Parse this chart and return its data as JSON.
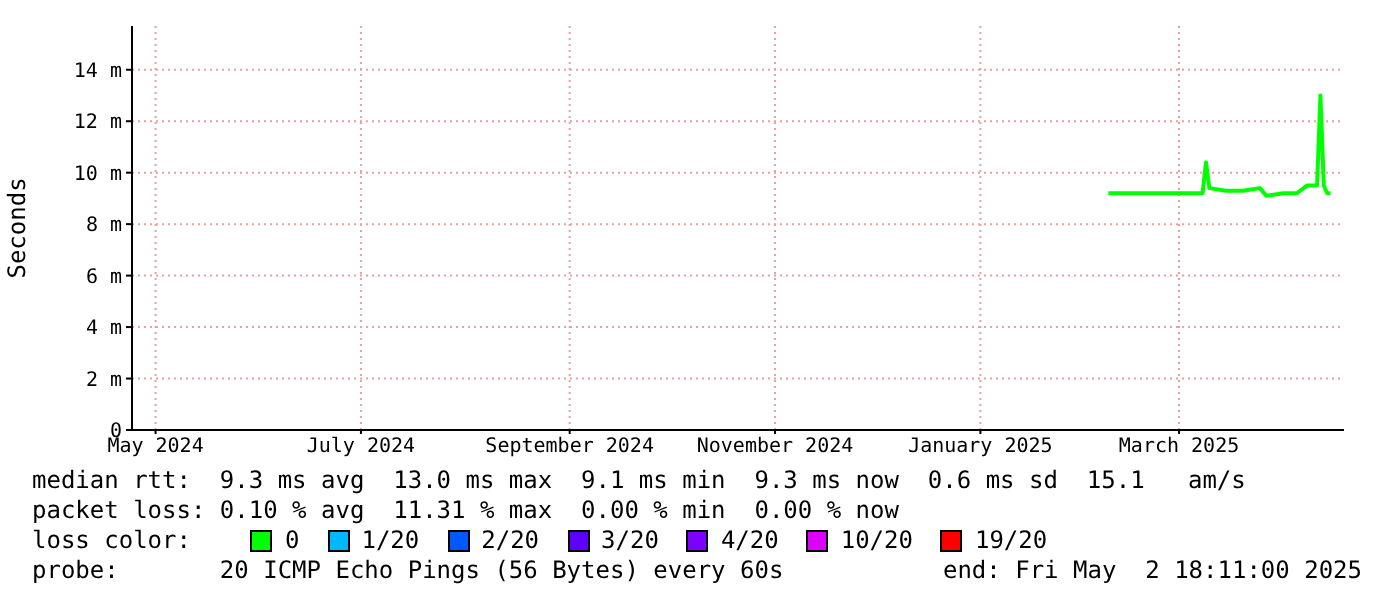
{
  "chart_data": {
    "type": "line",
    "ylabel": "Seconds",
    "legend_title": "loss color:",
    "legend": "bottom",
    "grid": true,
    "marker": "none",
    "line_style": "solid",
    "x": [
      "2025-02-08",
      "2025-02-15",
      "2025-02-22",
      "2025-03-01",
      "2025-03-08",
      "2025-03-09",
      "2025-03-10",
      "2025-03-15",
      "2025-03-20",
      "2025-03-25",
      "2025-03-27",
      "2025-04-01",
      "2025-04-05",
      "2025-04-08",
      "2025-04-11",
      "2025-04-12",
      "2025-04-13",
      "2025-04-14",
      "2025-04-15"
    ],
    "xlim": [
      "2024-04-24",
      "2025-04-19"
    ],
    "xticks": [
      {
        "value": "2024-05-01",
        "label": "May 2024"
      },
      {
        "value": "2024-07-01",
        "label": "July 2024"
      },
      {
        "value": "2024-09-01",
        "label": "September 2024"
      },
      {
        "value": "2024-11-01",
        "label": "November 2024"
      },
      {
        "value": "2025-01-01",
        "label": "January 2025"
      },
      {
        "value": "2025-03-01",
        "label": "March 2025"
      }
    ],
    "ylim": [
      0,
      15.7
    ],
    "yticks": [
      0,
      {
        "value": 2,
        "label": "2 m"
      },
      {
        "value": 4,
        "label": "4 m"
      },
      {
        "value": 6,
        "label": "6 m"
      },
      {
        "value": 8,
        "label": "8 m"
      },
      {
        "value": 10,
        "label": "10 m"
      },
      {
        "value": 12,
        "label": "12 m"
      },
      {
        "value": 14,
        "label": "14 m"
      }
    ],
    "series": [
      {
        "name": "0",
        "color": "#00ff00",
        "values": [
          9.2,
          9.2,
          9.2,
          9.2,
          9.2,
          10.4,
          9.4,
          9.3,
          9.3,
          9.4,
          9.1,
          9.2,
          9.2,
          9.5,
          9.5,
          13.0,
          9.5,
          9.2,
          9.2
        ]
      },
      {
        "name": "1/20",
        "color": "#00b8ff",
        "values": [
          null,
          null,
          null,
          null,
          null,
          null,
          null,
          null,
          null,
          null,
          null,
          null,
          null,
          null,
          null,
          null,
          null,
          null,
          null
        ]
      },
      {
        "name": "2/20",
        "color": "#0059ff",
        "values": [
          null,
          null,
          null,
          null,
          null,
          null,
          null,
          null,
          null,
          null,
          null,
          null,
          null,
          null,
          null,
          null,
          null,
          null,
          null
        ]
      },
      {
        "name": "3/20",
        "color": "#5e00ff",
        "values": [
          null,
          null,
          null,
          null,
          null,
          null,
          null,
          null,
          null,
          null,
          null,
          null,
          null,
          null,
          null,
          null,
          null,
          null,
          null
        ]
      },
      {
        "name": "4/20",
        "color": "#7e00ff",
        "values": [
          null,
          null,
          null,
          null,
          null,
          null,
          null,
          null,
          null,
          null,
          null,
          null,
          null,
          null,
          null,
          null,
          null,
          null,
          null
        ]
      },
      {
        "name": "10/20",
        "color": "#dd00ff",
        "values": [
          null,
          null,
          null,
          null,
          null,
          null,
          null,
          null,
          null,
          null,
          null,
          null,
          null,
          null,
          null,
          null,
          null,
          null,
          null
        ]
      },
      {
        "name": "19/20",
        "color": "#ff0000",
        "values": [
          null,
          null,
          null,
          null,
          null,
          null,
          null,
          null,
          null,
          null,
          null,
          null,
          null,
          null,
          null,
          null,
          null,
          null,
          null
        ]
      }
    ],
    "annotations": [
      "median rtt:  9.3 ms avg  13.0 ms max  9.1 ms min  9.3 ms now  0.6 ms sd  15.1   am/s",
      "packet loss: 0.10 % avg  11.31 % max  0.00 % min  0.00 % now",
      "probe:       20 ICMP Echo Pings (56 Bytes) every 60s",
      "end: Fri May  2 18:11:00 2025"
    ]
  }
}
